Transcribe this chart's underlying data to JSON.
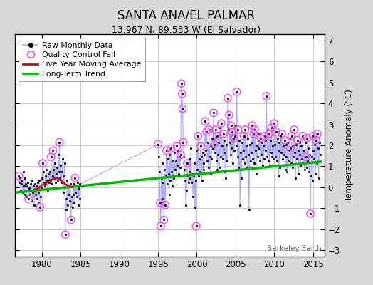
{
  "title": "SANTA ANA/EL PALMAR",
  "subtitle": "13.967 N, 89.533 W (El Salvador)",
  "ylabel": "Temperature Anomaly (°C)",
  "watermark": "Berkeley Earth",
  "xlim": [
    1976.5,
    2016.5
  ],
  "ylim": [
    -3.3,
    7.3
  ],
  "yticks": [
    -3,
    -2,
    -1,
    0,
    1,
    2,
    3,
    4,
    5,
    6,
    7
  ],
  "xticks": [
    1980,
    1985,
    1990,
    1995,
    2000,
    2005,
    2010,
    2015
  ],
  "bg_color": "#d8d8d8",
  "plot_bg_color": "#ffffff",
  "grid_color": "#bbbbbb",
  "line_color": "#aaaaff",
  "raw_marker_color": "#000000",
  "qc_color": "#ff44ff",
  "mavg_color": "#dd0000",
  "trend_color": "#00bb00",
  "trend_x": [
    1976.5,
    2016.0
  ],
  "trend_y": [
    -0.25,
    1.22
  ],
  "raw_data": [
    [
      1977.0,
      0.55
    ],
    [
      1977.083,
      0.25
    ],
    [
      1977.167,
      0.45
    ],
    [
      1977.25,
      -0.15
    ],
    [
      1977.333,
      0.15
    ],
    [
      1977.417,
      0.35
    ],
    [
      1977.5,
      -0.25
    ],
    [
      1977.583,
      0.75
    ],
    [
      1977.667,
      0.05
    ],
    [
      1977.75,
      -0.35
    ],
    [
      1977.833,
      0.45
    ],
    [
      1977.917,
      0.15
    ],
    [
      1978.0,
      -0.45
    ],
    [
      1978.083,
      0.05
    ],
    [
      1978.167,
      0.25
    ],
    [
      1978.25,
      -0.55
    ],
    [
      1978.333,
      -0.05
    ],
    [
      1978.417,
      -0.35
    ],
    [
      1978.5,
      0.15
    ],
    [
      1978.583,
      -0.15
    ],
    [
      1978.667,
      0.35
    ],
    [
      1978.75,
      -0.65
    ],
    [
      1978.833,
      -0.25
    ],
    [
      1978.917,
      0.05
    ],
    [
      1979.0,
      -0.85
    ],
    [
      1979.083,
      0.15
    ],
    [
      1979.167,
      -0.35
    ],
    [
      1979.25,
      0.05
    ],
    [
      1979.333,
      -0.55
    ],
    [
      1979.417,
      0.25
    ],
    [
      1979.5,
      -0.75
    ],
    [
      1979.583,
      -0.25
    ],
    [
      1979.667,
      0.35
    ],
    [
      1979.75,
      -0.95
    ],
    [
      1979.833,
      -0.45
    ],
    [
      1979.917,
      -0.05
    ],
    [
      1980.0,
      0.45
    ],
    [
      1980.083,
      1.15
    ],
    [
      1980.167,
      0.75
    ],
    [
      1980.25,
      0.25
    ],
    [
      1980.333,
      0.05
    ],
    [
      1980.417,
      0.55
    ],
    [
      1980.5,
      0.15
    ],
    [
      1980.583,
      0.85
    ],
    [
      1980.667,
      0.35
    ],
    [
      1980.75,
      -0.15
    ],
    [
      1980.833,
      0.65
    ],
    [
      1980.917,
      0.25
    ],
    [
      1981.0,
      0.75
    ],
    [
      1981.083,
      0.35
    ],
    [
      1981.167,
      1.45
    ],
    [
      1981.25,
      0.15
    ],
    [
      1981.333,
      0.55
    ],
    [
      1981.417,
      1.75
    ],
    [
      1981.5,
      0.85
    ],
    [
      1981.583,
      0.45
    ],
    [
      1981.667,
      1.15
    ],
    [
      1981.75,
      0.25
    ],
    [
      1981.833,
      0.65
    ],
    [
      1981.917,
      0.95
    ],
    [
      1982.0,
      0.35
    ],
    [
      1982.083,
      1.55
    ],
    [
      1982.167,
      0.75
    ],
    [
      1982.25,
      2.15
    ],
    [
      1982.333,
      0.45
    ],
    [
      1982.417,
      1.05
    ],
    [
      1982.5,
      0.25
    ],
    [
      1982.583,
      0.75
    ],
    [
      1982.667,
      1.35
    ],
    [
      1982.75,
      -0.25
    ],
    [
      1982.833,
      0.55
    ],
    [
      1982.917,
      1.15
    ],
    [
      1983.0,
      -2.25
    ],
    [
      1983.083,
      -0.55
    ],
    [
      1983.167,
      -1.05
    ],
    [
      1983.25,
      0.35
    ],
    [
      1983.333,
      -0.85
    ],
    [
      1983.417,
      -0.35
    ],
    [
      1983.5,
      0.05
    ],
    [
      1983.583,
      -0.65
    ],
    [
      1983.667,
      0.15
    ],
    [
      1983.75,
      -1.55
    ],
    [
      1983.833,
      -0.45
    ],
    [
      1983.917,
      -0.95
    ],
    [
      1984.0,
      -0.35
    ],
    [
      1984.083,
      0.15
    ],
    [
      1984.167,
      -0.75
    ],
    [
      1984.25,
      0.45
    ],
    [
      1984.333,
      -0.25
    ],
    [
      1984.417,
      0.05
    ],
    [
      1984.5,
      -0.45
    ],
    [
      1984.583,
      0.25
    ],
    [
      1984.667,
      -0.85
    ],
    [
      1984.75,
      -0.05
    ],
    [
      1984.833,
      -0.55
    ],
    [
      1984.917,
      0.15
    ],
    [
      1995.0,
      2.05
    ],
    [
      1995.083,
      1.45
    ],
    [
      1995.167,
      0.75
    ],
    [
      1995.25,
      -0.75
    ],
    [
      1995.333,
      -1.85
    ],
    [
      1995.417,
      0.45
    ],
    [
      1995.5,
      1.15
    ],
    [
      1995.583,
      -0.55
    ],
    [
      1995.667,
      0.25
    ],
    [
      1995.75,
      -1.55
    ],
    [
      1995.833,
      0.85
    ],
    [
      1995.917,
      -0.85
    ],
    [
      1996.0,
      0.55
    ],
    [
      1996.083,
      1.75
    ],
    [
      1996.167,
      0.15
    ],
    [
      1996.25,
      1.35
    ],
    [
      1996.333,
      0.65
    ],
    [
      1996.417,
      -0.35
    ],
    [
      1996.5,
      1.55
    ],
    [
      1996.583,
      0.35
    ],
    [
      1996.667,
      1.85
    ],
    [
      1996.75,
      0.75
    ],
    [
      1996.833,
      0.05
    ],
    [
      1996.917,
      1.25
    ],
    [
      1997.0,
      0.45
    ],
    [
      1997.083,
      1.65
    ],
    [
      1997.167,
      0.85
    ],
    [
      1997.25,
      1.25
    ],
    [
      1997.333,
      0.55
    ],
    [
      1997.417,
      1.95
    ],
    [
      1997.5,
      1.05
    ],
    [
      1997.583,
      1.75
    ],
    [
      1997.667,
      0.65
    ],
    [
      1997.75,
      1.45
    ],
    [
      1997.833,
      0.95
    ],
    [
      1997.917,
      1.55
    ],
    [
      1998.0,
      4.95
    ],
    [
      1998.083,
      4.45
    ],
    [
      1998.167,
      3.75
    ],
    [
      1998.25,
      2.15
    ],
    [
      1998.333,
      1.45
    ],
    [
      1998.417,
      0.85
    ],
    [
      1998.5,
      0.35
    ],
    [
      1998.583,
      -0.85
    ],
    [
      1998.667,
      -0.15
    ],
    [
      1998.75,
      1.15
    ],
    [
      1998.833,
      0.55
    ],
    [
      1998.917,
      0.25
    ],
    [
      1999.0,
      0.75
    ],
    [
      1999.083,
      1.35
    ],
    [
      1999.167,
      0.45
    ],
    [
      1999.25,
      1.85
    ],
    [
      1999.333,
      0.25
    ],
    [
      1999.417,
      0.65
    ],
    [
      1999.5,
      -0.45
    ],
    [
      1999.583,
      0.55
    ],
    [
      1999.667,
      1.15
    ],
    [
      1999.75,
      -0.95
    ],
    [
      1999.833,
      0.35
    ],
    [
      1999.917,
      -1.85
    ],
    [
      2000.0,
      1.75
    ],
    [
      2000.083,
      0.85
    ],
    [
      2000.167,
      2.45
    ],
    [
      2000.25,
      0.55
    ],
    [
      2000.333,
      1.35
    ],
    [
      2000.417,
      0.75
    ],
    [
      2000.5,
      1.95
    ],
    [
      2000.583,
      1.45
    ],
    [
      2000.667,
      0.35
    ],
    [
      2000.75,
      1.65
    ],
    [
      2000.833,
      0.85
    ],
    [
      2000.917,
      1.15
    ],
    [
      2001.0,
      1.55
    ],
    [
      2001.083,
      3.15
    ],
    [
      2001.167,
      1.75
    ],
    [
      2001.25,
      2.65
    ],
    [
      2001.333,
      1.25
    ],
    [
      2001.417,
      2.15
    ],
    [
      2001.5,
      0.95
    ],
    [
      2001.583,
      2.75
    ],
    [
      2001.667,
      1.45
    ],
    [
      2001.75,
      0.65
    ],
    [
      2001.833,
      1.95
    ],
    [
      2001.917,
      1.35
    ],
    [
      2002.0,
      2.35
    ],
    [
      2002.083,
      1.85
    ],
    [
      2002.167,
      3.55
    ],
    [
      2002.25,
      2.05
    ],
    [
      2002.333,
      1.65
    ],
    [
      2002.417,
      2.75
    ],
    [
      2002.5,
      1.25
    ],
    [
      2002.583,
      2.45
    ],
    [
      2002.667,
      0.85
    ],
    [
      2002.75,
      1.55
    ],
    [
      2002.833,
      2.15
    ],
    [
      2002.917,
      0.95
    ],
    [
      2003.0,
      2.85
    ],
    [
      2003.083,
      1.45
    ],
    [
      2003.167,
      3.05
    ],
    [
      2003.25,
      1.95
    ],
    [
      2003.333,
      1.35
    ],
    [
      2003.417,
      2.55
    ],
    [
      2003.5,
      0.75
    ],
    [
      2003.583,
      2.25
    ],
    [
      2003.667,
      1.65
    ],
    [
      2003.75,
      0.45
    ],
    [
      2003.833,
      2.05
    ],
    [
      2003.917,
      1.25
    ],
    [
      2004.0,
      4.25
    ],
    [
      2004.083,
      2.75
    ],
    [
      2004.167,
      3.45
    ],
    [
      2004.25,
      2.15
    ],
    [
      2004.333,
      1.55
    ],
    [
      2004.417,
      2.95
    ],
    [
      2004.5,
      1.85
    ],
    [
      2004.583,
      2.65
    ],
    [
      2004.667,
      1.15
    ],
    [
      2004.75,
      2.35
    ],
    [
      2004.833,
      1.75
    ],
    [
      2004.917,
      2.45
    ],
    [
      2005.0,
      2.95
    ],
    [
      2005.083,
      1.95
    ],
    [
      2005.167,
      4.55
    ],
    [
      2005.25,
      1.45
    ],
    [
      2005.333,
      2.75
    ],
    [
      2005.417,
      0.95
    ],
    [
      2005.5,
      2.25
    ],
    [
      2005.583,
      -0.85
    ],
    [
      2005.667,
      1.65
    ],
    [
      2005.75,
      0.45
    ],
    [
      2005.833,
      2.15
    ],
    [
      2005.917,
      1.35
    ],
    [
      2006.0,
      1.75
    ],
    [
      2006.083,
      2.45
    ],
    [
      2006.167,
      1.15
    ],
    [
      2006.25,
      2.75
    ],
    [
      2006.333,
      1.45
    ],
    [
      2006.417,
      1.95
    ],
    [
      2006.5,
      0.95
    ],
    [
      2006.583,
      2.35
    ],
    [
      2006.667,
      1.55
    ],
    [
      2006.75,
      -1.05
    ],
    [
      2006.833,
      2.05
    ],
    [
      2006.917,
      1.25
    ],
    [
      2007.0,
      2.15
    ],
    [
      2007.083,
      1.65
    ],
    [
      2007.167,
      2.95
    ],
    [
      2007.25,
      1.35
    ],
    [
      2007.333,
      2.55
    ],
    [
      2007.417,
      1.15
    ],
    [
      2007.5,
      2.75
    ],
    [
      2007.583,
      1.75
    ],
    [
      2007.667,
      0.65
    ],
    [
      2007.75,
      1.95
    ],
    [
      2007.833,
      1.45
    ],
    [
      2007.917,
      2.25
    ],
    [
      2008.0,
      1.85
    ],
    [
      2008.083,
      2.55
    ],
    [
      2008.167,
      1.25
    ],
    [
      2008.25,
      2.35
    ],
    [
      2008.333,
      1.55
    ],
    [
      2008.417,
      2.15
    ],
    [
      2008.5,
      1.05
    ],
    [
      2008.583,
      1.95
    ],
    [
      2008.667,
      1.35
    ],
    [
      2008.75,
      2.45
    ],
    [
      2008.833,
      1.75
    ],
    [
      2008.917,
      2.25
    ],
    [
      2009.0,
      4.35
    ],
    [
      2009.083,
      1.45
    ],
    [
      2009.167,
      2.75
    ],
    [
      2009.25,
      1.25
    ],
    [
      2009.333,
      2.55
    ],
    [
      2009.417,
      1.05
    ],
    [
      2009.5,
      2.25
    ],
    [
      2009.583,
      1.65
    ],
    [
      2009.667,
      2.85
    ],
    [
      2009.75,
      1.45
    ],
    [
      2009.833,
      1.95
    ],
    [
      2009.917,
      1.35
    ],
    [
      2010.0,
      3.05
    ],
    [
      2010.083,
      2.05
    ],
    [
      2010.167,
      1.45
    ],
    [
      2010.25,
      2.65
    ],
    [
      2010.333,
      1.25
    ],
    [
      2010.417,
      2.35
    ],
    [
      2010.5,
      1.75
    ],
    [
      2010.583,
      0.55
    ],
    [
      2010.667,
      2.15
    ],
    [
      2010.75,
      0.95
    ],
    [
      2010.833,
      2.45
    ],
    [
      2010.917,
      1.65
    ],
    [
      2011.0,
      2.55
    ],
    [
      2011.083,
      1.35
    ],
    [
      2011.167,
      1.95
    ],
    [
      2011.25,
      1.55
    ],
    [
      2011.333,
      2.25
    ],
    [
      2011.417,
      0.85
    ],
    [
      2011.5,
      2.05
    ],
    [
      2011.583,
      1.45
    ],
    [
      2011.667,
      0.75
    ],
    [
      2011.75,
      2.15
    ],
    [
      2011.833,
      1.25
    ],
    [
      2011.917,
      1.75
    ],
    [
      2012.0,
      2.35
    ],
    [
      2012.083,
      1.85
    ],
    [
      2012.167,
      1.15
    ],
    [
      2012.25,
      2.45
    ],
    [
      2012.333,
      0.95
    ],
    [
      2012.417,
      1.95
    ],
    [
      2012.5,
      1.45
    ],
    [
      2012.583,
      2.75
    ],
    [
      2012.667,
      1.65
    ],
    [
      2012.75,
      0.45
    ],
    [
      2012.833,
      2.05
    ],
    [
      2012.917,
      1.35
    ],
    [
      2013.0,
      2.25
    ],
    [
      2013.083,
      1.75
    ],
    [
      2013.167,
      0.65
    ],
    [
      2013.25,
      2.15
    ],
    [
      2013.333,
      1.55
    ],
    [
      2013.417,
      1.05
    ],
    [
      2013.5,
      1.95
    ],
    [
      2013.583,
      1.35
    ],
    [
      2013.667,
      2.45
    ],
    [
      2013.75,
      1.15
    ],
    [
      2013.833,
      1.75
    ],
    [
      2013.917,
      0.85
    ],
    [
      2014.0,
      2.15
    ],
    [
      2014.083,
      1.45
    ],
    [
      2014.167,
      0.95
    ],
    [
      2014.25,
      2.35
    ],
    [
      2014.333,
      1.25
    ],
    [
      2014.417,
      1.85
    ],
    [
      2014.5,
      0.75
    ],
    [
      2014.583,
      1.55
    ],
    [
      2014.667,
      -1.25
    ],
    [
      2014.75,
      0.55
    ],
    [
      2014.833,
      1.45
    ],
    [
      2014.917,
      0.35
    ],
    [
      2015.0,
      2.45
    ],
    [
      2015.083,
      1.75
    ],
    [
      2015.167,
      1.35
    ],
    [
      2015.25,
      2.05
    ],
    [
      2015.333,
      0.65
    ],
    [
      2015.417,
      2.25
    ],
    [
      2015.5,
      1.15
    ],
    [
      2015.583,
      2.55
    ],
    [
      2015.667,
      1.85
    ],
    [
      2015.75,
      0.45
    ],
    [
      2015.833,
      2.15
    ],
    [
      2015.917,
      1.55
    ]
  ],
  "qc_fail_points": [
    [
      1977.0,
      0.55
    ],
    [
      1978.25,
      -0.55
    ],
    [
      1979.75,
      -0.95
    ],
    [
      1980.083,
      1.15
    ],
    [
      1981.167,
      1.45
    ],
    [
      1981.417,
      1.75
    ],
    [
      1982.25,
      2.15
    ],
    [
      1983.0,
      -2.25
    ],
    [
      1983.75,
      -1.55
    ],
    [
      1984.25,
      0.45
    ],
    [
      1995.0,
      2.05
    ],
    [
      1995.25,
      -0.75
    ],
    [
      1995.333,
      -1.85
    ],
    [
      1995.75,
      -1.55
    ],
    [
      1995.917,
      -0.85
    ],
    [
      1996.083,
      1.75
    ],
    [
      1996.667,
      1.85
    ],
    [
      1997.417,
      1.95
    ],
    [
      1997.917,
      1.55
    ],
    [
      1998.0,
      4.95
    ],
    [
      1998.083,
      4.45
    ],
    [
      1998.167,
      3.75
    ],
    [
      1998.25,
      2.15
    ],
    [
      1998.75,
      1.15
    ],
    [
      1999.917,
      -1.85
    ],
    [
      2000.167,
      2.45
    ],
    [
      2000.5,
      1.95
    ],
    [
      2001.083,
      3.15
    ],
    [
      2001.25,
      2.65
    ],
    [
      2001.583,
      2.75
    ],
    [
      2002.167,
      3.55
    ],
    [
      2002.25,
      2.05
    ],
    [
      2002.417,
      2.75
    ],
    [
      2002.583,
      2.45
    ],
    [
      2003.167,
      3.05
    ],
    [
      2003.417,
      2.55
    ],
    [
      2004.0,
      4.25
    ],
    [
      2004.167,
      3.45
    ],
    [
      2004.417,
      2.95
    ],
    [
      2004.583,
      2.65
    ],
    [
      2004.75,
      2.35
    ],
    [
      2005.167,
      4.55
    ],
    [
      2005.333,
      2.75
    ],
    [
      2006.083,
      2.45
    ],
    [
      2006.25,
      2.75
    ],
    [
      2007.167,
      2.95
    ],
    [
      2007.333,
      2.55
    ],
    [
      2007.5,
      2.75
    ],
    [
      2008.25,
      2.35
    ],
    [
      2008.75,
      2.45
    ],
    [
      2009.0,
      4.35
    ],
    [
      2009.333,
      2.55
    ],
    [
      2009.667,
      2.85
    ],
    [
      2010.0,
      3.05
    ],
    [
      2010.25,
      2.65
    ],
    [
      2011.0,
      2.55
    ],
    [
      2011.333,
      2.25
    ],
    [
      2012.083,
      1.85
    ],
    [
      2012.25,
      2.45
    ],
    [
      2012.583,
      2.75
    ],
    [
      2013.0,
      2.25
    ],
    [
      2013.667,
      2.45
    ],
    [
      2014.083,
      1.45
    ],
    [
      2014.25,
      2.35
    ],
    [
      2014.667,
      -1.25
    ],
    [
      2015.0,
      2.45
    ],
    [
      2015.417,
      2.25
    ],
    [
      2015.583,
      2.55
    ]
  ],
  "mavg_segments": [
    {
      "x": [
        1979.0,
        1979.5,
        1980.0,
        1980.5,
        1981.0,
        1981.5,
        1982.0,
        1982.5,
        1983.0,
        1983.5,
        1984.0
      ],
      "y": [
        -0.1,
        -0.05,
        0.1,
        0.2,
        0.35,
        0.4,
        0.45,
        0.3,
        0.15,
        0.05,
        0.0
      ]
    }
  ]
}
